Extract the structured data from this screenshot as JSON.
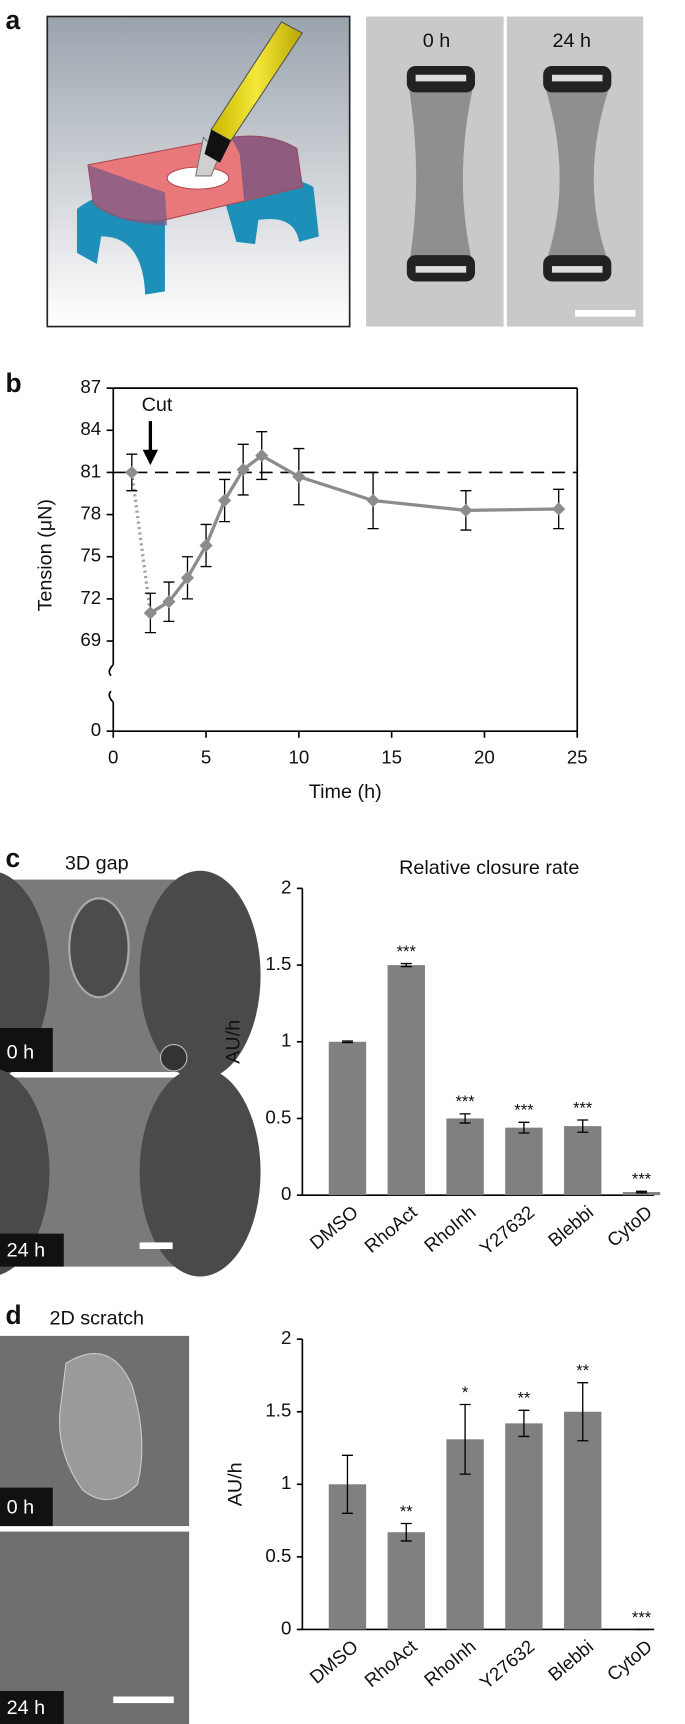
{
  "panels": {
    "a": {
      "label": "a",
      "image_labels": [
        "0 h",
        "24 h"
      ]
    },
    "b": {
      "label": "b"
    },
    "c": {
      "label": "c",
      "caption": "3D gap",
      "image_labels": [
        "0 h",
        "24 h"
      ]
    },
    "d": {
      "label": "d",
      "caption": "2D scratch",
      "image_labels": [
        "0 h",
        "24 h"
      ]
    }
  },
  "chart_data": [
    {
      "type": "line",
      "xlabel": "Time (h)",
      "ylabel": "Tension (μN)",
      "x": [
        1,
        2,
        3,
        4,
        5,
        6,
        7,
        8,
        10,
        14,
        19,
        24
      ],
      "series": [
        {
          "color": "#8c8c8c",
          "values": [
            81.0,
            71.0,
            71.8,
            73.5,
            75.8,
            79.0,
            81.2,
            82.2,
            80.7,
            79.0,
            78.3,
            78.4
          ],
          "errors": [
            1.3,
            1.4,
            1.4,
            1.5,
            1.5,
            1.5,
            1.8,
            1.7,
            2.0,
            2.0,
            1.4,
            1.4
          ]
        }
      ],
      "xlim": [
        0,
        25
      ],
      "xticks": [
        0,
        5,
        10,
        15,
        20,
        25
      ],
      "ylim": [
        0,
        87
      ],
      "y_break": [
        3,
        67
      ],
      "yticks": [
        0,
        69,
        72,
        75,
        78,
        81,
        84,
        87
      ],
      "hline": 81,
      "cut": {
        "text": "Cut",
        "x": 2
      }
    },
    {
      "type": "bar",
      "title": "Relative closure rate",
      "ylabel": "AU/h",
      "color": "#808080",
      "categories": [
        "DMSO",
        "RhoAct",
        "RhoInh",
        "Y27632",
        "Blebbi",
        "CytoD"
      ],
      "values": [
        1.0,
        1.5,
        0.5,
        0.44,
        0.45,
        0.02
      ],
      "errors": [
        0.005,
        0.01,
        0.03,
        0.035,
        0.04,
        0.005
      ],
      "annotations": [
        null,
        "***",
        "***",
        "***",
        "***",
        "***"
      ],
      "ylim": [
        0,
        2
      ],
      "yticks": [
        0,
        0.5,
        1,
        1.5,
        2
      ]
    },
    {
      "type": "bar",
      "ylabel": "AU/h",
      "color": "#808080",
      "categories": [
        "DMSO",
        "RhoAct",
        "RhoInh",
        "Y27632",
        "Blebbi",
        "CytoD"
      ],
      "values": [
        1.0,
        0.67,
        1.31,
        1.42,
        1.5,
        0
      ],
      "errors": [
        0.2,
        0.06,
        0.24,
        0.09,
        0.2,
        0
      ],
      "annotations": [
        null,
        "**",
        "*",
        "**",
        "**",
        "***"
      ],
      "ylim": [
        0,
        2
      ],
      "yticks": [
        0,
        0.5,
        1,
        1.5,
        2
      ]
    }
  ]
}
